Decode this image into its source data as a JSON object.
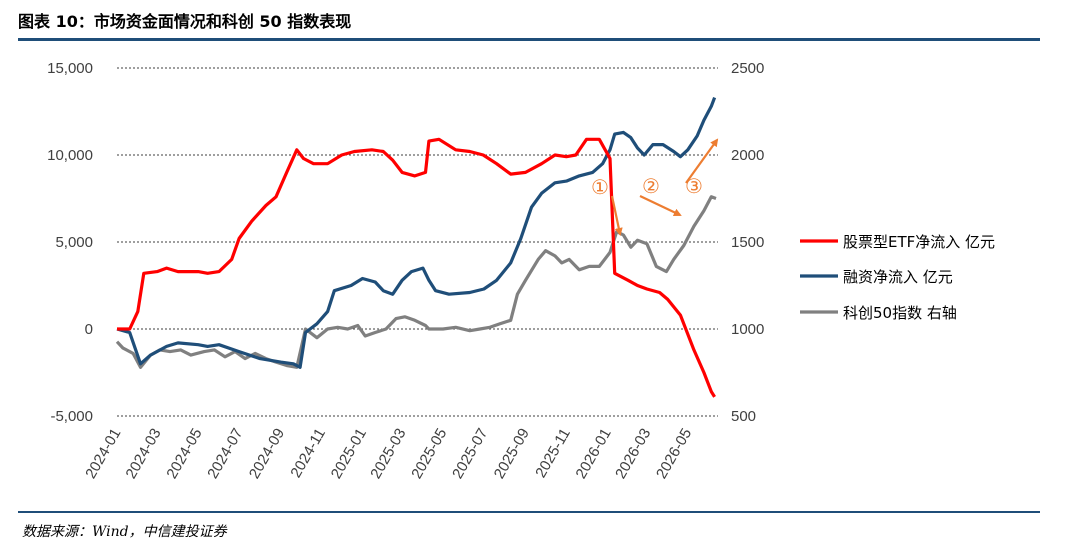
{
  "page": {
    "title": "图表 10：市场资金面情况和科创 50 指数表现",
    "source": "数据来源：Wind，中信建投证券"
  },
  "colors": {
    "etf": "#ff0000",
    "margin": "#1f4e79",
    "star50": "#808080",
    "arrow": "#ed7d31",
    "rule": "#1f4e79"
  },
  "chart_data": {
    "type": "line",
    "grid": true,
    "legend_position": "right",
    "x_dates": [
      "2024-01",
      "2024-03",
      "2024-05",
      "2024-07",
      "2024-09",
      "2024-11",
      "2025-01",
      "2025-03",
      "2025-05",
      "2025-07",
      "2025-09",
      "2025-11",
      "2026-01",
      "2026-03",
      "2026-05"
    ],
    "x_range": [
      "2024-01-01",
      "2026-06-15"
    ],
    "y_left": {
      "ticks": [
        "15,000",
        "10,000",
        "5,000",
        "0",
        "-5,000"
      ],
      "tick_values": [
        15000,
        10000,
        5000,
        0,
        -5000
      ],
      "range": [
        -5000,
        15000
      ]
    },
    "y_right": {
      "ticks": [
        "2500",
        "2000",
        "1500",
        "1000",
        "500"
      ],
      "tick_values": [
        2500,
        2000,
        1500,
        1000,
        500
      ],
      "range": [
        500,
        2500
      ]
    },
    "annotations": [
      "①",
      "②",
      "③"
    ],
    "series": [
      {
        "name": "股票型ETF净流入 亿元",
        "axis": "left",
        "points": [
          [
            "2024-01-01",
            0
          ],
          [
            "2024-01-20",
            0
          ],
          [
            "2024-02-01",
            1000
          ],
          [
            "2024-02-10",
            3200
          ],
          [
            "2024-03-01",
            3300
          ],
          [
            "2024-03-15",
            3500
          ],
          [
            "2024-04-01",
            3300
          ],
          [
            "2024-05-01",
            3300
          ],
          [
            "2024-05-15",
            3200
          ],
          [
            "2024-06-01",
            3300
          ],
          [
            "2024-06-20",
            4000
          ],
          [
            "2024-07-01",
            5200
          ],
          [
            "2024-07-20",
            6200
          ],
          [
            "2024-08-10",
            7100
          ],
          [
            "2024-08-25",
            7600
          ],
          [
            "2024-09-10",
            9000
          ],
          [
            "2024-09-25",
            10300
          ],
          [
            "2024-10-05",
            9800
          ],
          [
            "2024-10-20",
            9500
          ],
          [
            "2024-11-10",
            9500
          ],
          [
            "2024-12-01",
            10000
          ],
          [
            "2024-12-20",
            10200
          ],
          [
            "2025-01-15",
            10300
          ],
          [
            "2025-02-01",
            10200
          ],
          [
            "2025-02-15",
            9700
          ],
          [
            "2025-03-01",
            9000
          ],
          [
            "2025-03-20",
            8800
          ],
          [
            "2025-04-05",
            9000
          ],
          [
            "2025-04-10",
            10800
          ],
          [
            "2025-04-25",
            10900
          ],
          [
            "2025-05-20",
            10300
          ],
          [
            "2025-06-10",
            10200
          ],
          [
            "2025-06-30",
            10000
          ],
          [
            "2025-07-20",
            9500
          ],
          [
            "2025-08-10",
            8900
          ],
          [
            "2025-09-01",
            9000
          ],
          [
            "2025-09-25",
            9500
          ],
          [
            "2025-10-15",
            10000
          ],
          [
            "2025-11-01",
            9900
          ],
          [
            "2025-11-15",
            10000
          ],
          [
            "2025-12-01",
            10900
          ],
          [
            "2025-12-20",
            10900
          ],
          [
            "2026-01-05",
            9800
          ],
          [
            "2026-01-12",
            3200
          ],
          [
            "2026-02-01",
            2800
          ],
          [
            "2026-02-15",
            2500
          ],
          [
            "2026-03-01",
            2300
          ],
          [
            "2026-03-20",
            2100
          ],
          [
            "2026-04-01",
            1700
          ],
          [
            "2026-04-20",
            800
          ],
          [
            "2026-05-10",
            -1200
          ],
          [
            "2026-05-25",
            -2500
          ],
          [
            "2026-06-05",
            -3600
          ],
          [
            "2026-06-10",
            -3900
          ]
        ]
      },
      {
        "name": "融资净流入 亿元",
        "axis": "left",
        "points": [
          [
            "2024-01-01",
            0
          ],
          [
            "2024-01-20",
            -200
          ],
          [
            "2024-02-05",
            -2000
          ],
          [
            "2024-02-20",
            -1500
          ],
          [
            "2024-03-15",
            -1000
          ],
          [
            "2024-04-01",
            -800
          ],
          [
            "2024-05-01",
            -900
          ],
          [
            "2024-05-15",
            -1000
          ],
          [
            "2024-06-01",
            -900
          ],
          [
            "2024-07-01",
            -1300
          ],
          [
            "2024-08-01",
            -1700
          ],
          [
            "2024-09-01",
            -1900
          ],
          [
            "2024-09-20",
            -2000
          ],
          [
            "2024-09-30",
            -2200
          ],
          [
            "2024-10-08",
            -200
          ],
          [
            "2024-10-25",
            300
          ],
          [
            "2024-11-10",
            1000
          ],
          [
            "2024-11-20",
            2200
          ],
          [
            "2024-12-15",
            2500
          ],
          [
            "2025-01-01",
            2900
          ],
          [
            "2025-01-20",
            2700
          ],
          [
            "2025-02-01",
            2200
          ],
          [
            "2025-02-15",
            2000
          ],
          [
            "2025-03-01",
            2800
          ],
          [
            "2025-03-15",
            3300
          ],
          [
            "2025-04-01",
            3500
          ],
          [
            "2025-04-10",
            2800
          ],
          [
            "2025-04-20",
            2200
          ],
          [
            "2025-05-10",
            2000
          ],
          [
            "2025-06-10",
            2100
          ],
          [
            "2025-07-01",
            2300
          ],
          [
            "2025-07-20",
            2800
          ],
          [
            "2025-08-10",
            3800
          ],
          [
            "2025-08-25",
            5200
          ],
          [
            "2025-09-10",
            7000
          ],
          [
            "2025-09-25",
            7800
          ],
          [
            "2025-10-15",
            8400
          ],
          [
            "2025-11-01",
            8500
          ],
          [
            "2025-11-20",
            8800
          ],
          [
            "2025-12-10",
            9000
          ],
          [
            "2025-12-25",
            9500
          ],
          [
            "2026-01-05",
            10300
          ],
          [
            "2026-01-12",
            11200
          ],
          [
            "2026-01-25",
            11300
          ],
          [
            "2026-02-05",
            11000
          ],
          [
            "2026-02-15",
            10400
          ],
          [
            "2026-02-25",
            10000
          ],
          [
            "2026-03-10",
            10600
          ],
          [
            "2026-03-25",
            10600
          ],
          [
            "2026-04-10",
            10200
          ],
          [
            "2026-04-20",
            9900
          ],
          [
            "2026-05-01",
            10300
          ],
          [
            "2026-05-15",
            11100
          ],
          [
            "2026-05-25",
            12000
          ],
          [
            "2026-06-05",
            12800
          ],
          [
            "2026-06-10",
            13300
          ]
        ]
      },
      {
        "name": "科创50指数 右轴",
        "axis": "right",
        "points": [
          [
            "2024-01-01",
            927
          ],
          [
            "2024-01-10",
            890
          ],
          [
            "2024-01-25",
            860
          ],
          [
            "2024-02-05",
            780
          ],
          [
            "2024-02-20",
            850
          ],
          [
            "2024-03-05",
            880
          ],
          [
            "2024-03-20",
            870
          ],
          [
            "2024-04-05",
            880
          ],
          [
            "2024-04-20",
            850
          ],
          [
            "2024-05-10",
            870
          ],
          [
            "2024-05-25",
            880
          ],
          [
            "2024-06-10",
            840
          ],
          [
            "2024-06-25",
            870
          ],
          [
            "2024-07-10",
            830
          ],
          [
            "2024-07-25",
            860
          ],
          [
            "2024-08-10",
            830
          ],
          [
            "2024-08-25",
            810
          ],
          [
            "2024-09-10",
            790
          ],
          [
            "2024-09-25",
            780
          ],
          [
            "2024-10-08",
            1000
          ],
          [
            "2024-10-25",
            950
          ],
          [
            "2024-11-10",
            1000
          ],
          [
            "2024-11-25",
            1010
          ],
          [
            "2024-12-10",
            1000
          ],
          [
            "2024-12-25",
            1020
          ],
          [
            "2025-01-05",
            960
          ],
          [
            "2025-01-20",
            980
          ],
          [
            "2025-02-05",
            1000
          ],
          [
            "2025-02-20",
            1060
          ],
          [
            "2025-03-05",
            1070
          ],
          [
            "2025-03-20",
            1050
          ],
          [
            "2025-04-05",
            1020
          ],
          [
            "2025-04-10",
            1000
          ],
          [
            "2025-05-01",
            1000
          ],
          [
            "2025-05-20",
            1010
          ],
          [
            "2025-06-10",
            990
          ],
          [
            "2025-06-25",
            1000
          ],
          [
            "2025-07-10",
            1010
          ],
          [
            "2025-07-25",
            1030
          ],
          [
            "2025-08-10",
            1050
          ],
          [
            "2025-08-20",
            1200
          ],
          [
            "2025-09-01",
            1280
          ],
          [
            "2025-09-20",
            1400
          ],
          [
            "2025-10-01",
            1450
          ],
          [
            "2025-10-15",
            1420
          ],
          [
            "2025-10-25",
            1380
          ],
          [
            "2025-11-05",
            1400
          ],
          [
            "2025-11-20",
            1340
          ],
          [
            "2025-12-05",
            1360
          ],
          [
            "2025-12-20",
            1360
          ],
          [
            "2026-01-05",
            1440
          ],
          [
            "2026-01-15",
            1560
          ],
          [
            "2026-01-25",
            1540
          ],
          [
            "2026-02-05",
            1470
          ],
          [
            "2026-02-15",
            1510
          ],
          [
            "2026-03-01",
            1490
          ],
          [
            "2026-03-15",
            1360
          ],
          [
            "2026-03-30",
            1330
          ],
          [
            "2026-04-10",
            1400
          ],
          [
            "2026-04-25",
            1480
          ],
          [
            "2026-05-10",
            1590
          ],
          [
            "2026-05-25",
            1680
          ],
          [
            "2026-06-05",
            1760
          ],
          [
            "2026-06-12",
            1750
          ]
        ]
      }
    ]
  }
}
